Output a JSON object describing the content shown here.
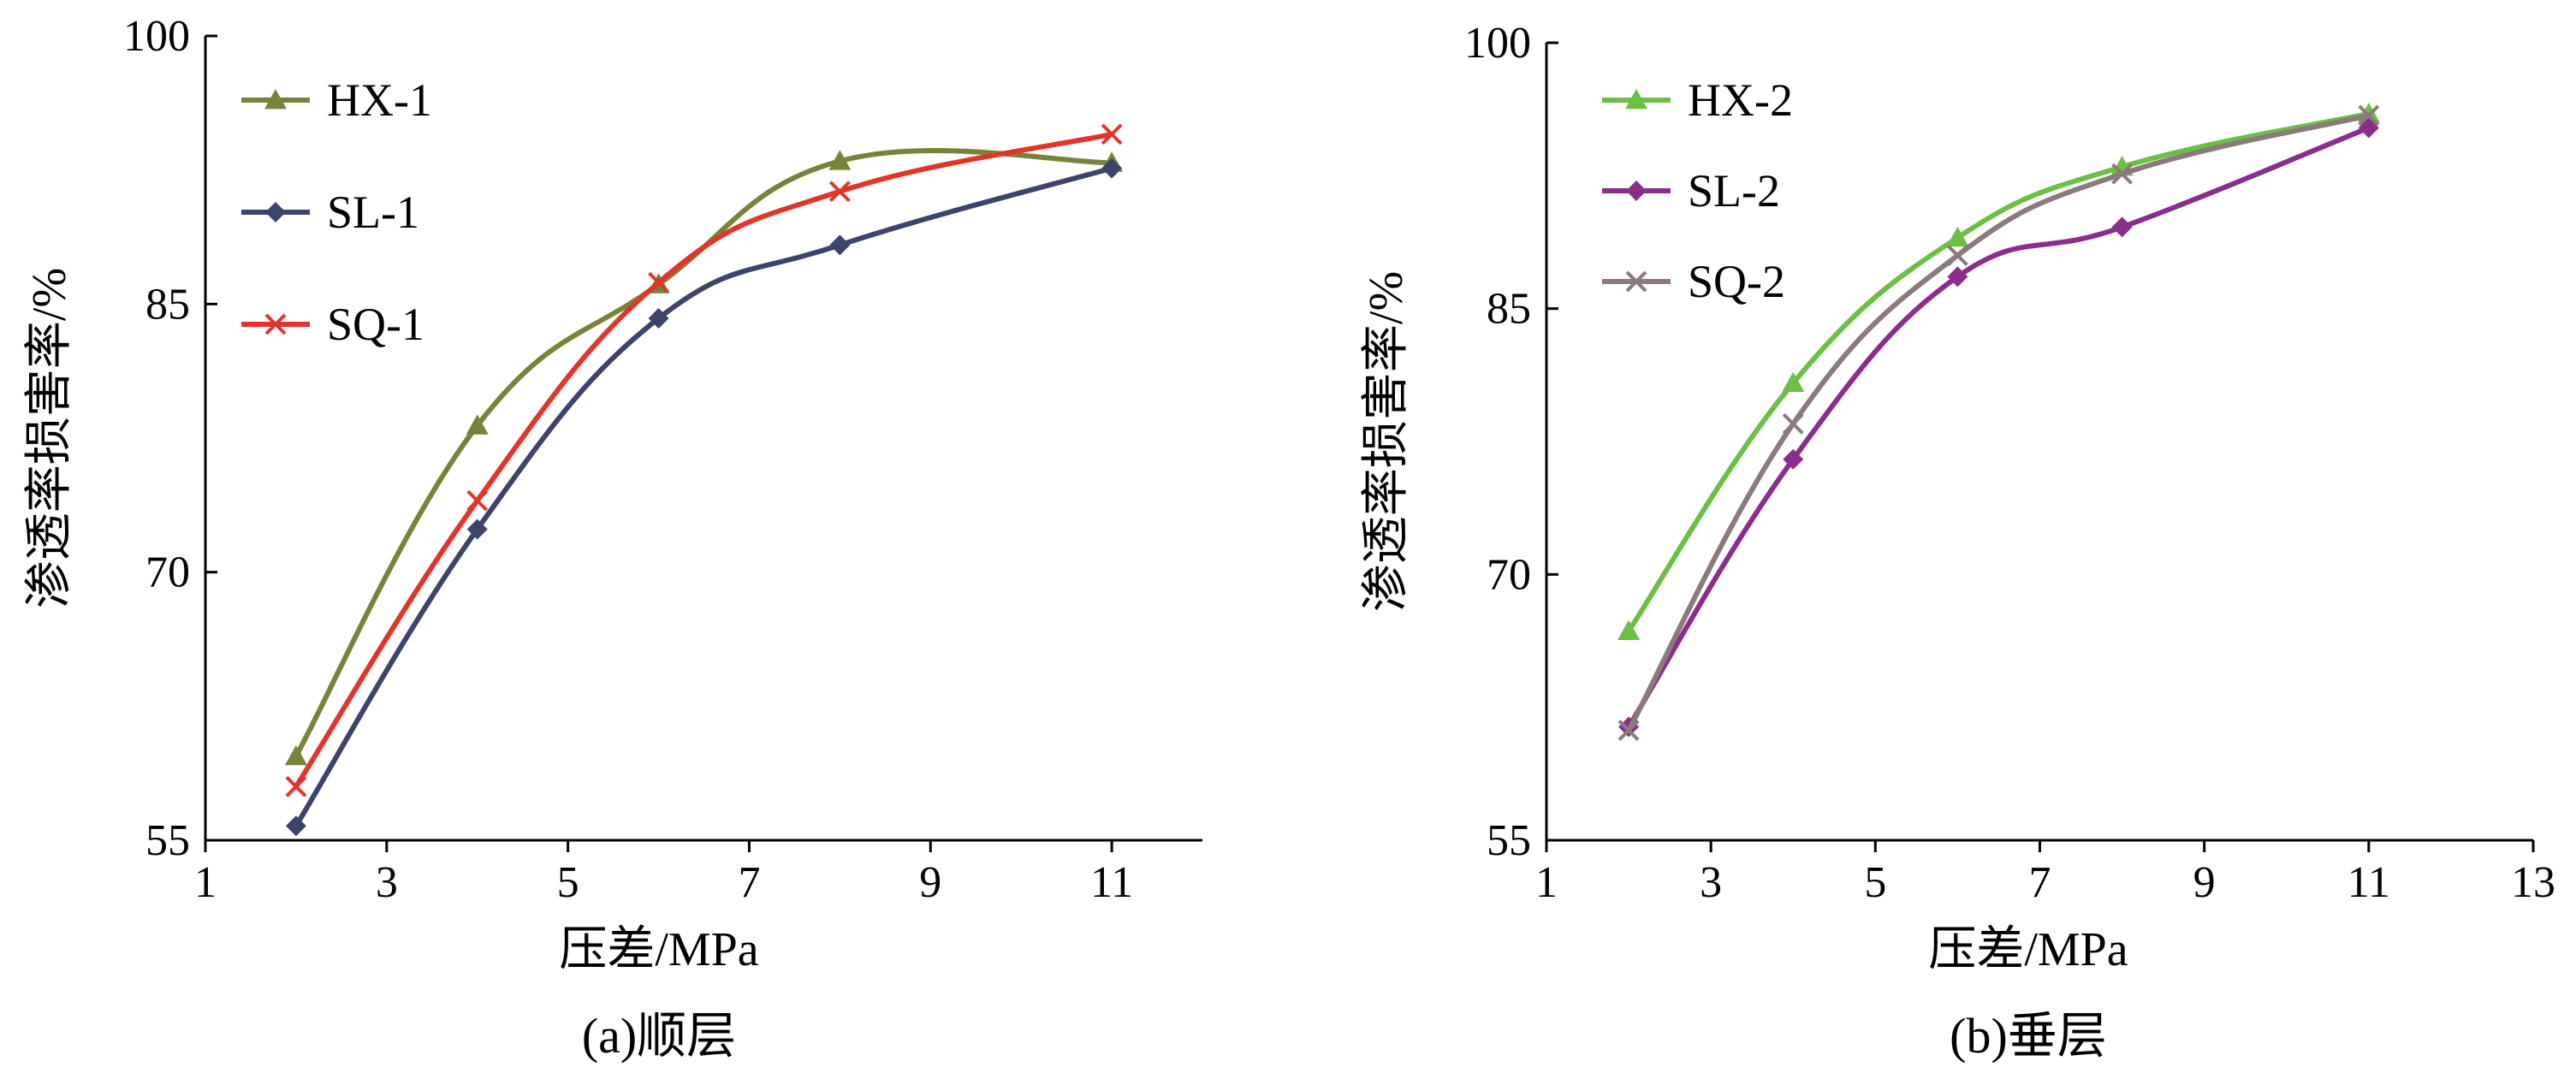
{
  "chart_data": [
    {
      "type": "line",
      "caption": "(a)顺层",
      "xlabel": "压差/MPa",
      "ylabel": "渗透率损害率/%",
      "xlim": [
        1,
        12
      ],
      "ylim": [
        55,
        100
      ],
      "xticks": [
        1,
        3,
        5,
        7,
        9,
        11
      ],
      "yticks": [
        55,
        70,
        85,
        100
      ],
      "legend": "top-left",
      "grid": false,
      "series": [
        {
          "name": "HX-1",
          "marker": "triangle",
          "color": "#76843a",
          "x": [
            2,
            4,
            6,
            8,
            11
          ],
          "y": [
            59.7,
            78.2,
            86.1,
            93.0,
            92.9
          ]
        },
        {
          "name": "SL-1",
          "marker": "diamond",
          "color": "#3c4469",
          "x": [
            2,
            4,
            6,
            8,
            11
          ],
          "y": [
            55.8,
            72.4,
            84.2,
            88.3,
            92.6
          ]
        },
        {
          "name": "SQ-1",
          "marker": "x",
          "color": "#e2352a",
          "x": [
            2,
            4,
            6,
            8,
            11
          ],
          "y": [
            58.0,
            74.0,
            86.2,
            91.3,
            94.5
          ]
        }
      ]
    },
    {
      "type": "line",
      "caption": "(b)垂层",
      "xlabel": "压差/MPa",
      "ylabel": "渗透率损害率/%",
      "xlim": [
        1,
        13
      ],
      "ylim": [
        55,
        100
      ],
      "xticks": [
        1,
        3,
        5,
        7,
        9,
        11,
        13
      ],
      "yticks": [
        55,
        70,
        85,
        100
      ],
      "legend": "top-left",
      "grid": false,
      "series": [
        {
          "name": "HX-2",
          "marker": "triangle",
          "color": "#6cbf45",
          "x": [
            2,
            4,
            6,
            8,
            11
          ],
          "y": [
            66.8,
            80.8,
            89.0,
            93.0,
            96.0
          ]
        },
        {
          "name": "SL-2",
          "marker": "diamond",
          "color": "#8a2e8c",
          "x": [
            2,
            4,
            6,
            8,
            11
          ],
          "y": [
            61.4,
            76.5,
            86.8,
            89.6,
            95.2
          ]
        },
        {
          "name": "SQ-2",
          "marker": "x",
          "color": "#8a7a7a",
          "x": [
            2,
            4,
            6,
            8,
            11
          ],
          "y": [
            61.2,
            78.5,
            88.0,
            92.6,
            95.9
          ]
        }
      ]
    }
  ]
}
